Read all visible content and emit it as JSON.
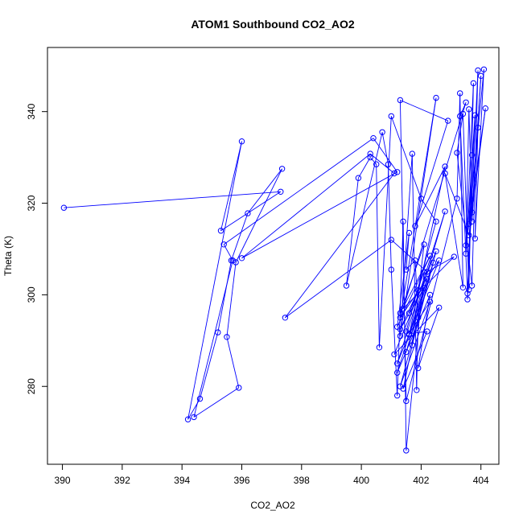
{
  "chart_data": {
    "type": "line",
    "title": "ATOM1 Southbound CO2_AO2",
    "xlabel": "CO2_AO2",
    "ylabel": "Theta (K)",
    "xlim": [
      389.5,
      404.6
    ],
    "ylim": [
      263,
      354
    ],
    "x_ticks": [
      390,
      392,
      394,
      396,
      398,
      400,
      402,
      404
    ],
    "y_ticks": [
      280,
      300,
      320,
      340
    ],
    "grid": false,
    "legend": "none",
    "line_color": "#0000ff",
    "marker": "open-circle",
    "series": [
      {
        "points": [
          [
            390.05,
            319.0
          ],
          [
            397.3,
            322.5
          ],
          [
            395.3,
            314.0
          ],
          [
            396.0,
            333.5
          ],
          [
            394.2,
            272.8
          ],
          [
            394.6,
            277.3
          ],
          [
            395.2,
            291.8
          ],
          [
            395.65,
            307.5
          ],
          [
            396.2,
            317.8
          ],
          [
            397.35,
            327.5
          ],
          [
            395.8,
            307.1
          ],
          [
            395.5,
            290.8
          ],
          [
            395.9,
            279.7
          ],
          [
            394.4,
            273.3
          ],
          [
            395.7,
            307.5
          ],
          [
            395.4,
            311.0
          ],
          [
            400.4,
            334.2
          ],
          [
            401.2,
            326.8
          ],
          [
            396.0,
            308.0
          ],
          [
            400.3,
            330.8
          ],
          [
            401.1,
            326.5
          ],
          [
            397.45,
            295.0
          ],
          [
            401.0,
            312.0
          ],
          [
            402.2,
            305.0
          ],
          [
            403.1,
            308.3
          ],
          [
            401.4,
            297.0
          ],
          [
            403.5,
            342.0
          ],
          [
            403.3,
            339.0
          ],
          [
            403.55,
            300.3
          ],
          [
            403.9,
            349.0
          ],
          [
            403.7,
            302.0
          ],
          [
            403.2,
            331.0
          ],
          [
            403.4,
            339.5
          ],
          [
            403.6,
            301.1
          ],
          [
            403.75,
            346.2
          ],
          [
            403.5,
            309.0
          ],
          [
            403.8,
            339.2
          ],
          [
            403.55,
            299.0
          ],
          [
            403.7,
            330.5
          ],
          [
            403.6,
            315.5
          ],
          [
            404.1,
            349.2
          ],
          [
            403.8,
            312.3
          ],
          [
            403.9,
            336.5
          ],
          [
            403.7,
            316.0
          ],
          [
            404.0,
            347.8
          ],
          [
            403.7,
            318.0
          ],
          [
            403.6,
            340.5
          ],
          [
            403.5,
            310.8
          ],
          [
            404.15,
            340.7
          ],
          [
            403.6,
            313.0
          ],
          [
            402.8,
            326.5
          ],
          [
            403.4,
            301.6
          ],
          [
            403.3,
            344.0
          ],
          [
            403.2,
            321.0
          ],
          [
            401.5,
            276.8
          ],
          [
            401.3,
            342.5
          ],
          [
            402.9,
            338.0
          ],
          [
            401.8,
            315.0
          ],
          [
            402.8,
            328.0
          ],
          [
            401.6,
            291.3
          ],
          [
            402.8,
            318.2
          ],
          [
            401.2,
            285.0
          ],
          [
            402.6,
            307.5
          ],
          [
            401.3,
            295.0
          ],
          [
            402.5,
            343.0
          ],
          [
            401.3,
            291.0
          ],
          [
            401.7,
            330.8
          ],
          [
            401.85,
            279.2
          ],
          [
            401.9,
            295.0
          ],
          [
            401.8,
            307.5
          ],
          [
            401.5,
            305.5
          ],
          [
            401.6,
            313.5
          ],
          [
            401.2,
            293.0
          ],
          [
            402.3,
            308.5
          ],
          [
            401.3,
            296.0
          ],
          [
            402.1,
            311.0
          ],
          [
            401.7,
            289.0
          ],
          [
            402.5,
            309.5
          ],
          [
            401.1,
            287.0
          ],
          [
            402.6,
            297.2
          ],
          [
            401.9,
            284.0
          ],
          [
            402.3,
            300.0
          ],
          [
            401.2,
            283.0
          ],
          [
            402.2,
            303.5
          ],
          [
            401.5,
            287.5
          ],
          [
            402.4,
            307.0
          ],
          [
            401.3,
            280.0
          ],
          [
            402.3,
            298.5
          ],
          [
            401.6,
            291.5
          ],
          [
            402.2,
            292.0
          ],
          [
            401.4,
            279.5
          ],
          [
            402.1,
            301.5
          ],
          [
            401.3,
            292.5
          ],
          [
            401.9,
            301.0
          ],
          [
            401.6,
            296.0
          ],
          [
            402.1,
            305.0
          ],
          [
            401.5,
            266.0
          ],
          [
            401.4,
            316.0
          ],
          [
            401.2,
            278.0
          ],
          [
            401.0,
            305.5
          ],
          [
            400.9,
            328.5
          ],
          [
            400.7,
            335.5
          ],
          [
            399.5,
            302.0
          ],
          [
            399.9,
            325.5
          ],
          [
            400.3,
            330.0
          ],
          [
            400.5,
            328.5
          ],
          [
            400.6,
            288.5
          ],
          [
            401.0,
            339.0
          ],
          [
            402.0,
            321.0
          ],
          [
            402.5,
            316.0
          ],
          [
            401.5,
            292.0
          ]
        ]
      }
    ]
  }
}
